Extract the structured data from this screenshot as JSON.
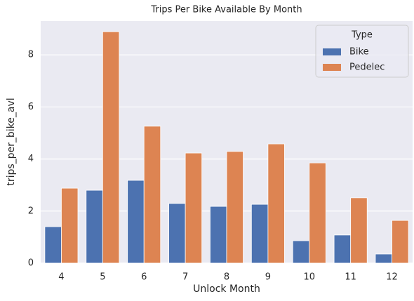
{
  "chart_data": {
    "type": "bar",
    "title": "Trips Per Bike Available By Month",
    "x_label": "Unlock Month",
    "y_label": "trips_per_bike_avl",
    "categories": [
      "4",
      "5",
      "6",
      "7",
      "8",
      "9",
      "10",
      "11",
      "12"
    ],
    "series": [
      {
        "name": "Bike",
        "color": "#4c72b0",
        "values": [
          1.4,
          2.8,
          3.18,
          2.29,
          2.18,
          2.26,
          0.86,
          1.08,
          0.35
        ]
      },
      {
        "name": "Pedelec",
        "color": "#dd8452",
        "values": [
          2.88,
          8.89,
          5.26,
          4.23,
          4.29,
          4.58,
          3.85,
          2.51,
          1.64
        ]
      }
    ],
    "legend_title": "Type",
    "legend": "upper right",
    "ylim": [
      0,
      9.3
    ],
    "yticks": [
      0,
      2,
      4,
      6,
      8
    ],
    "grid": true
  }
}
